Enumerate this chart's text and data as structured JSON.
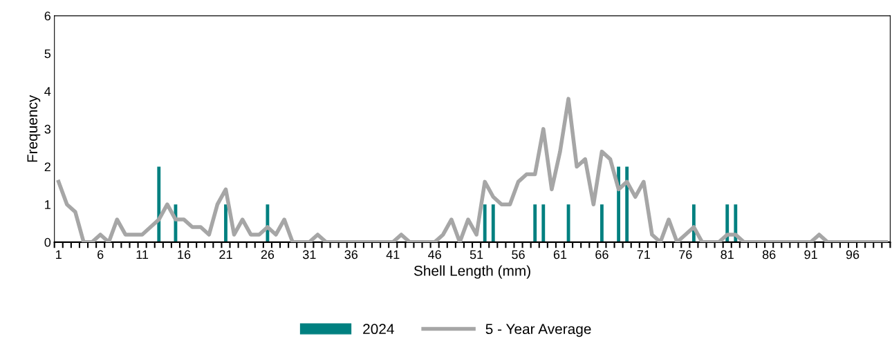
{
  "chart_data": {
    "type": "bar",
    "xlabel": "Shell Length (mm)",
    "ylabel": "Frequency",
    "categories": [
      "1",
      null,
      null,
      null,
      null,
      "6",
      null,
      null,
      null,
      null,
      "11",
      null,
      null,
      null,
      null,
      "16",
      null,
      null,
      null,
      null,
      "21",
      null,
      null,
      null,
      null,
      "26",
      null,
      null,
      null,
      null,
      "31",
      null,
      null,
      null,
      null,
      "36",
      null,
      null,
      null,
      null,
      "41",
      null,
      null,
      null,
      null,
      "46",
      null,
      null,
      null,
      null,
      "51",
      null,
      null,
      null,
      null,
      "56",
      null,
      null,
      null,
      null,
      "61",
      null,
      null,
      null,
      null,
      "66",
      null,
      null,
      null,
      null,
      "71",
      null,
      null,
      null,
      null,
      "76",
      null,
      null,
      null,
      null,
      "81",
      null,
      null,
      null,
      null,
      "86",
      null,
      null,
      null,
      null,
      "91",
      null,
      null,
      null,
      null,
      "96",
      null,
      null,
      null,
      null
    ],
    "series": [
      {
        "name": "2024",
        "color": "#008080",
        "values": [
          0,
          0,
          0,
          0,
          0,
          0,
          0,
          0,
          0,
          0,
          0,
          0,
          2,
          0,
          1,
          0,
          0,
          0,
          0,
          0,
          1,
          0,
          0,
          0,
          0,
          1,
          0,
          0,
          0,
          0,
          0,
          0,
          0,
          0,
          0,
          0,
          0,
          0,
          0,
          0,
          0,
          0,
          0,
          0,
          0,
          0,
          0,
          0,
          0,
          0,
          0,
          1,
          1,
          0,
          0,
          0,
          0,
          1,
          1,
          0,
          0,
          1,
          0,
          0,
          0,
          1,
          0,
          2,
          2,
          0,
          0,
          0,
          0,
          0,
          0,
          0,
          1,
          0,
          0,
          0,
          1,
          1,
          0,
          0,
          0,
          0,
          0,
          0,
          0,
          0,
          0,
          0,
          0,
          0,
          0,
          0,
          0,
          0,
          0,
          0
        ]
      },
      {
        "name": "5 - Year Average",
        "type": "line",
        "color": "#a6a6a6",
        "values": [
          1.6,
          1.0,
          0.8,
          0,
          0,
          0.2,
          0,
          0.6,
          0.2,
          0.2,
          0.2,
          0.4,
          0.6,
          1.0,
          0.6,
          0.6,
          0.4,
          0.4,
          0.2,
          1.0,
          1.4,
          0.2,
          0.6,
          0.2,
          0.2,
          0.4,
          0.2,
          0.6,
          0,
          0,
          0,
          0.2,
          0,
          0,
          0,
          0,
          0,
          0,
          0,
          0,
          0,
          0.2,
          0,
          0,
          0,
          0,
          0.2,
          0.6,
          0,
          0.6,
          0.2,
          1.6,
          1.2,
          1.0,
          1.0,
          1.6,
          1.8,
          1.8,
          3.0,
          1.4,
          2.4,
          3.8,
          2.0,
          2.2,
          1.0,
          2.4,
          2.2,
          1.4,
          1.6,
          1.2,
          1.6,
          0.2,
          0,
          0.6,
          0,
          0.2,
          0.4,
          0,
          0,
          0,
          0.2,
          0.2,
          0,
          0,
          0,
          0,
          0,
          0,
          0,
          0,
          0,
          0.2,
          0,
          0,
          0,
          0,
          0,
          0,
          0,
          0
        ]
      }
    ],
    "ylim": [
      0,
      6
    ],
    "yticks": [
      0,
      1,
      2,
      3,
      4,
      5,
      6
    ],
    "grid": false,
    "legend": "bottom",
    "marker": "none",
    "line_style": "solid"
  }
}
